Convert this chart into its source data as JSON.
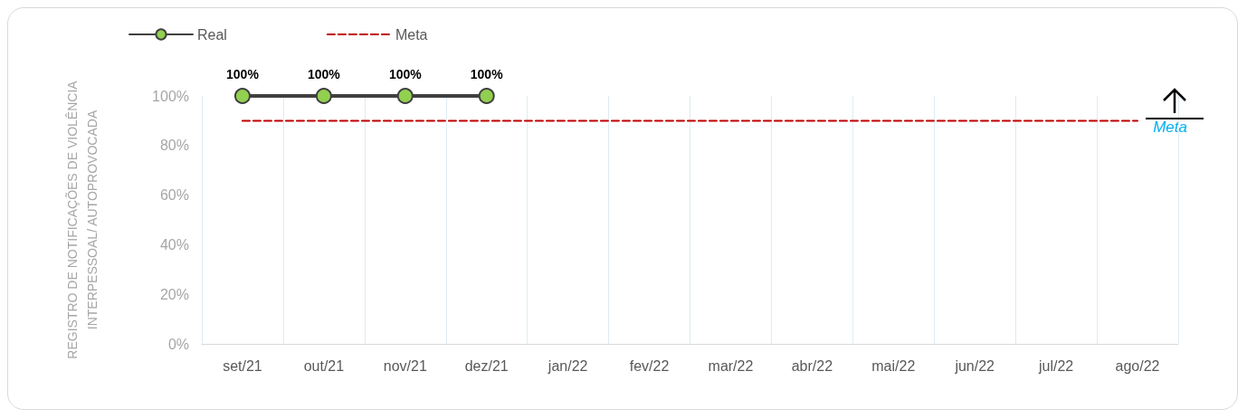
{
  "chart_data": {
    "type": "line",
    "ylabel": "REGISTRO DE NOTIFICAÇÕES DE VIOLÊNCIA\nINTERPESSOAL/ AUTOPROVOCADA",
    "categories": [
      "set/21",
      "out/21",
      "nov/21",
      "dez/21",
      "jan/22",
      "fev/22",
      "mar/22",
      "abr/22",
      "mai/22",
      "jun/22",
      "jul/22",
      "ago/22"
    ],
    "series": [
      {
        "name": "Real",
        "type": "line",
        "color": "#404040",
        "marker": "circle",
        "line_style": "solid",
        "values": [
          100,
          100,
          100,
          100,
          null,
          null,
          null,
          null,
          null,
          null,
          null,
          null
        ],
        "value_labels": [
          "100%",
          "100%",
          "100%",
          "100%",
          null,
          null,
          null,
          null,
          null,
          null,
          null,
          null
        ]
      },
      {
        "name": "Meta",
        "type": "line",
        "color": "#c00000",
        "marker": "none",
        "line_style": "dashed",
        "values": [
          90,
          90,
          90,
          90,
          90,
          90,
          90,
          90,
          90,
          90,
          90,
          90
        ]
      }
    ],
    "ylim": [
      0,
      100
    ],
    "yticks": [
      {
        "value": 0,
        "label": "0%"
      },
      {
        "value": 20,
        "label": "20%"
      },
      {
        "value": 40,
        "label": "40%"
      },
      {
        "value": 60,
        "label": "60%"
      },
      {
        "value": 80,
        "label": "80%"
      },
      {
        "value": 100,
        "label": "100%"
      }
    ],
    "grid": "x",
    "legend": "top left",
    "annotations": [
      "Meta"
    ]
  }
}
